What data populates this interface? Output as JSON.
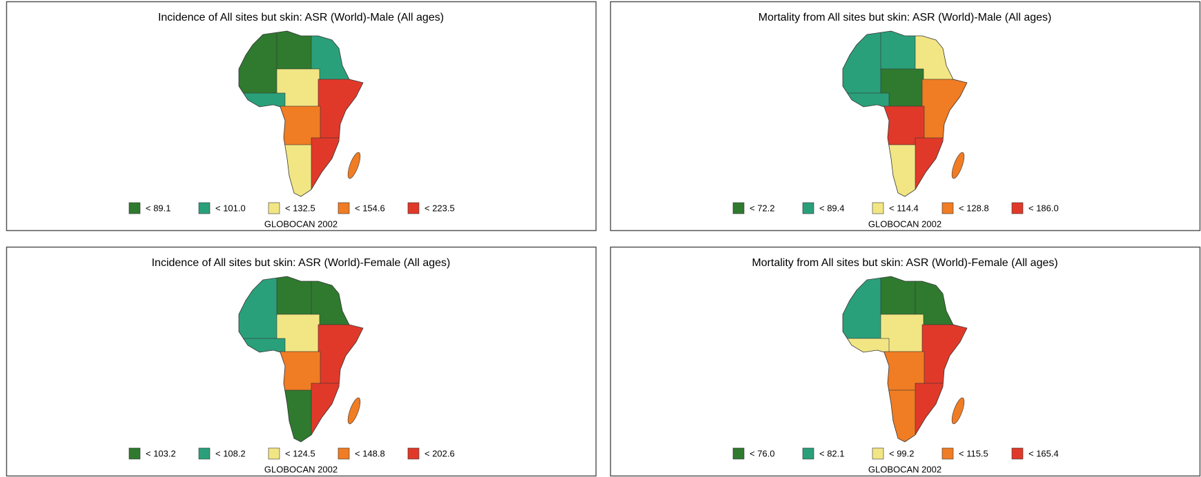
{
  "palette": [
    "#2f7a2f",
    "#2aa07a",
    "#f2e684",
    "#f07c24",
    "#e0392a"
  ],
  "source": "GLOBOCAN 2002",
  "panels": [
    {
      "title": "Incidence of All sites but skin: ASR (World)-Male (All ages)",
      "legend": [
        "< 89.1",
        "< 101.0",
        "< 132.5",
        "< 154.6",
        "< 223.5"
      ]
    },
    {
      "title": "Mortality from All sites but skin: ASR (World)-Male (All ages)",
      "legend": [
        "< 72.2",
        "< 89.4",
        "< 114.4",
        "< 128.8",
        "< 186.0"
      ]
    },
    {
      "title": "Incidence of All sites but skin: ASR (World)-Female (All ages)",
      "legend": [
        "< 103.2",
        "< 108.2",
        "< 124.5",
        "< 148.8",
        "< 202.6"
      ]
    },
    {
      "title": "Mortality from All sites but skin: ASR (World)-Female (All ages)",
      "legend": [
        "< 76.0",
        "< 82.1",
        "< 99.2",
        "< 115.5",
        "< 165.4"
      ]
    }
  ]
}
